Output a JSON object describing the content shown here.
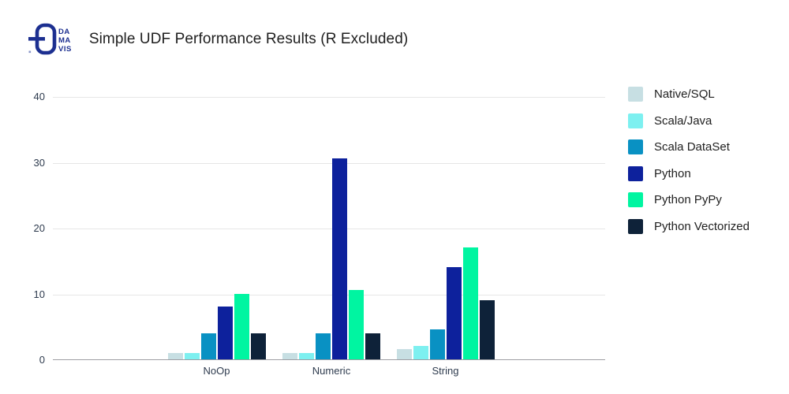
{
  "header": {
    "title": "Simple UDF Performance Results (R Excluded)",
    "logo": {
      "lines": [
        "DA",
        "MA",
        "VIS"
      ],
      "color": "#1c2f90"
    }
  },
  "chart_data": {
    "type": "bar",
    "title": "Simple UDF Performance Results (R Excluded)",
    "categories": [
      "NoOp",
      "Numeric",
      "String"
    ],
    "series": [
      {
        "name": "Native/SQL",
        "color": "#c7dfe3",
        "values": [
          1,
          1,
          1.5
        ]
      },
      {
        "name": "Scala/Java",
        "color": "#7df0f0",
        "values": [
          1,
          1,
          2
        ]
      },
      {
        "name": "Scala DataSet",
        "color": "#0991c3",
        "values": [
          4,
          4,
          4.5
        ]
      },
      {
        "name": "Python",
        "color": "#0d219c",
        "values": [
          8,
          30.5,
          14
        ]
      },
      {
        "name": "Python PyPy",
        "color": "#00f5a1",
        "values": [
          10,
          10.5,
          17
        ]
      },
      {
        "name": "Python Vectorized",
        "color": "#0e2239",
        "values": [
          4,
          4,
          9
        ]
      }
    ],
    "xlabel": "",
    "ylabel": "",
    "ylim": [
      0,
      40
    ],
    "yticks": [
      0,
      10,
      20,
      30,
      40
    ],
    "grid": true,
    "legend_position": "right"
  }
}
